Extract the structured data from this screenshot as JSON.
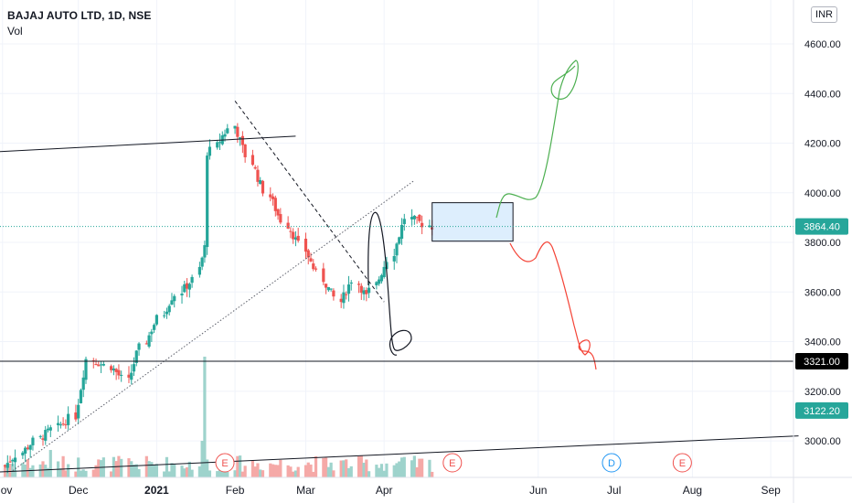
{
  "header": {
    "title": "BAJAJ AUTO LTD, 1D, NSE",
    "volume_label": "Vol",
    "currency": "INR"
  },
  "y_axis": {
    "ticks": [
      "4600.00",
      "4400.00",
      "4200.00",
      "4000.00",
      "3800.00",
      "3600.00",
      "3400.00",
      "3200.00",
      "3000.00"
    ],
    "badges": [
      {
        "label": "3864.40",
        "value": 3864.4,
        "color": "#26a69a"
      },
      {
        "label": "3321.00",
        "value": 3321.0,
        "color": "#000000"
      },
      {
        "label": "3122.20",
        "value": 3122.2,
        "color": "#26a69a"
      }
    ]
  },
  "x_axis": {
    "ticks": [
      {
        "label": "Nov",
        "date": "2020-11-01",
        "bold": false
      },
      {
        "label": "Dec",
        "date": "2020-12-01",
        "bold": false
      },
      {
        "label": "2021",
        "date": "2021-01-01",
        "bold": true
      },
      {
        "label": "Feb",
        "date": "2021-02-01",
        "bold": false
      },
      {
        "label": "Mar",
        "date": "2021-03-01",
        "bold": false
      },
      {
        "label": "Apr",
        "date": "2021-04-01",
        "bold": false
      },
      {
        "label": "Jun",
        "date": "2021-06-01",
        "bold": false
      },
      {
        "label": "Jul",
        "date": "2021-07-01",
        "bold": false
      },
      {
        "label": "Aug",
        "date": "2021-08-01",
        "bold": false
      },
      {
        "label": "Sep",
        "date": "2021-09-01",
        "bold": false
      }
    ]
  },
  "events": [
    {
      "type": "earnings",
      "label": "E",
      "date": "2021-01-28",
      "color": "#ef5350"
    },
    {
      "type": "earnings",
      "label": "E",
      "date": "2021-04-28",
      "color": "#ef5350"
    },
    {
      "type": "dividend",
      "label": "D",
      "date": "2021-06-30",
      "color": "#2196f3"
    },
    {
      "type": "earnings",
      "label": "E",
      "date": "2021-07-28",
      "color": "#ef5350"
    }
  ],
  "colors": {
    "up": "#26a69a",
    "down": "#ef5350",
    "up_volume": "#9ed3cc",
    "down_volume": "#f5a9a7",
    "grid": "#f0f3fa",
    "text": "#131722",
    "box_fill": "#bbdefb",
    "drawing_green": "#4caf50",
    "drawing_red": "#f44336"
  },
  "chart_data": {
    "type": "candlestick",
    "series_name": "BAJAJ AUTO LTD",
    "interval": "1D",
    "y_range": [
      2880,
      4700
    ],
    "x_range": [
      "2020-10-31",
      "2021-09-10"
    ],
    "last_price": 3864.4,
    "horizontal_levels": [
      3321.0
    ],
    "candles_anchor": {
      "dates_start": "2020-11-02",
      "waypoints": [
        [
          0,
          2900
        ],
        [
          10,
          3010
        ],
        [
          20,
          3100
        ],
        [
          24,
          3330
        ],
        [
          30,
          3300
        ],
        [
          35,
          3240
        ],
        [
          38,
          3350
        ],
        [
          42,
          3450
        ],
        [
          48,
          3580
        ],
        [
          54,
          3650
        ],
        [
          57,
          3780
        ],
        [
          58,
          4150
        ],
        [
          62,
          4230
        ],
        [
          65,
          4270
        ],
        [
          68,
          4180
        ],
        [
          72,
          4060
        ],
        [
          78,
          3910
        ],
        [
          84,
          3790
        ],
        [
          90,
          3650
        ],
        [
          95,
          3560
        ],
        [
          99,
          3650
        ],
        [
          103,
          3580
        ],
        [
          107,
          3680
        ],
        [
          110,
          3760
        ],
        [
          114,
          3900
        ],
        [
          118,
          3880
        ],
        [
          121,
          3864
        ]
      ],
      "count": 122
    },
    "volumes_note": "histogram under price, spike near late January"
  },
  "drawings": [
    {
      "type": "trendline",
      "style": "solid",
      "from": {
        "date": "2020-10-20",
        "value": 4160
      },
      "to": {
        "date": "2021-02-25",
        "value": 4228
      }
    },
    {
      "type": "trendline",
      "style": "dotted",
      "from": {
        "date": "2020-11-05",
        "value": 2880
      },
      "to": {
        "date": "2021-04-13",
        "value": 4050
      }
    },
    {
      "type": "trendline",
      "style": "dashed",
      "from": {
        "date": "2021-02-01",
        "value": 4370
      },
      "to": {
        "date": "2021-04-01",
        "value": 3560
      }
    },
    {
      "type": "trendline",
      "style": "solid",
      "from": {
        "date": "2020-10-20",
        "value": 2870
      },
      "to": {
        "date": "2021-09-12",
        "value": 3020
      }
    },
    {
      "type": "rectangle",
      "from": {
        "date": "2021-04-20",
        "value": 3960
      },
      "to": {
        "date": "2021-05-22",
        "value": 3805
      }
    }
  ]
}
